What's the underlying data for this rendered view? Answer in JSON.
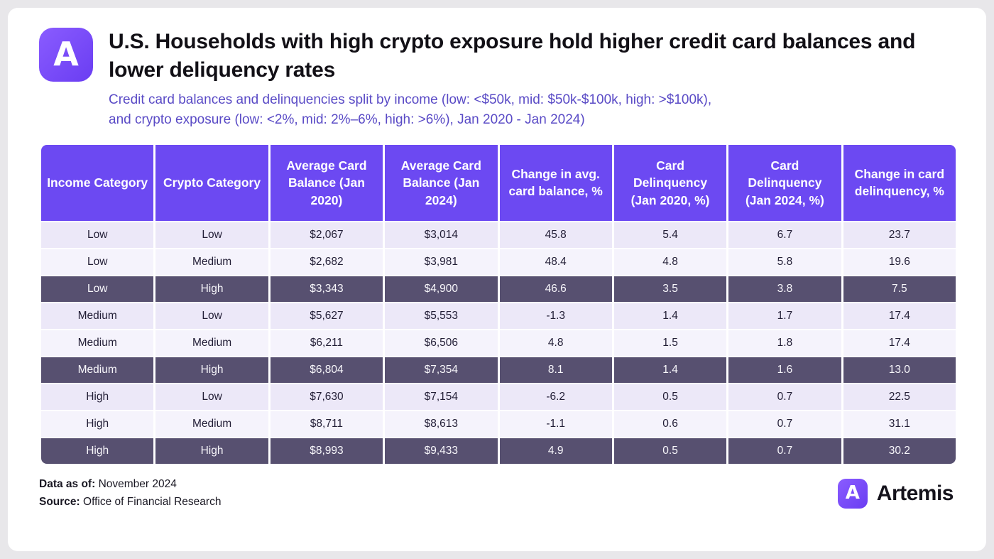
{
  "header": {
    "title": "U.S. Households with high crypto exposure hold higher credit card balances and lower deliquency rates",
    "subtitle_line1": "Credit card balances and delinquencies split by income (low: <$50k, mid: $50k-$100k, high: >$100k),",
    "subtitle_line2": "and crypto exposure (low: <2%, mid: 2%–6%, high: >6%), Jan 2020 - Jan 2024)"
  },
  "logo": {
    "glyph": "A"
  },
  "chart_data": {
    "type": "table",
    "title": "U.S. Households with high crypto exposure hold higher credit card balances and lower deliquency rates",
    "columns": [
      "Income Category",
      "Crypto Category",
      "Average Card Balance (Jan 2020)",
      "Average Card Balance (Jan 2024)",
      "Change in avg. card balance, %",
      "Card Delinquency (Jan 2020, %)",
      "Card Delinquency (Jan 2024, %)",
      "Change in card delinquency, %"
    ],
    "rows": [
      {
        "cells": [
          "Low",
          "Low",
          "$2,067",
          "$3,014",
          "45.8",
          "5.4",
          "6.7",
          "23.7"
        ],
        "highlight": false
      },
      {
        "cells": [
          "Low",
          "Medium",
          "$2,682",
          "$3,981",
          "48.4",
          "4.8",
          "5.8",
          "19.6"
        ],
        "highlight": false
      },
      {
        "cells": [
          "Low",
          "High",
          "$3,343",
          "$4,900",
          "46.6",
          "3.5",
          "3.8",
          "7.5"
        ],
        "highlight": true
      },
      {
        "cells": [
          "Medium",
          "Low",
          "$5,627",
          "$5,553",
          "-1.3",
          "1.4",
          "1.7",
          "17.4"
        ],
        "highlight": false
      },
      {
        "cells": [
          "Medium",
          "Medium",
          "$6,211",
          "$6,506",
          "4.8",
          "1.5",
          "1.8",
          "17.4"
        ],
        "highlight": false
      },
      {
        "cells": [
          "Medium",
          "High",
          "$6,804",
          "$7,354",
          "8.1",
          "1.4",
          "1.6",
          "13.0"
        ],
        "highlight": true
      },
      {
        "cells": [
          "High",
          "Low",
          "$7,630",
          "$7,154",
          "-6.2",
          "0.5",
          "0.7",
          "22.5"
        ],
        "highlight": false
      },
      {
        "cells": [
          "High",
          "Medium",
          "$8,711",
          "$8,613",
          "-1.1",
          "0.6",
          "0.7",
          "31.1"
        ],
        "highlight": false
      },
      {
        "cells": [
          "High",
          "High",
          "$8,993",
          "$9,433",
          "4.9",
          "0.5",
          "0.7",
          "30.2"
        ],
        "highlight": true
      }
    ],
    "highlight_meaning": "Rows with high crypto exposure shown on dark background"
  },
  "footer": {
    "data_as_of_label": "Data as of:",
    "data_as_of_value": "November 2024",
    "source_label": "Source:",
    "source_value": "Office of Financial Research",
    "brand": "Artemis"
  },
  "colors": {
    "header_purple": "#6c49f2",
    "dark_row": "#575070",
    "light_row_a": "#ece8f8",
    "light_row_b": "#f5f3fc",
    "subtitle_purple": "#5a4bc6",
    "logo_purple": "#7a4ff7",
    "page_background": "#e8e7ea"
  }
}
